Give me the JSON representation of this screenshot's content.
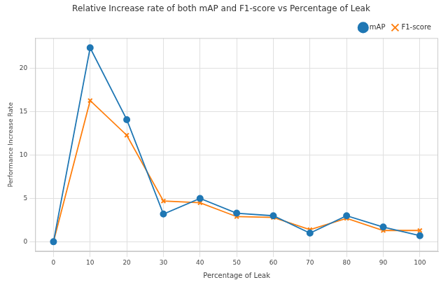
{
  "chart_data": {
    "type": "line",
    "title": "Relative Increase rate of both mAP and F1-score vs Percentage of Leak",
    "x_label": "Percentage of Leak",
    "y_label": "Performance Increase Rate",
    "x": [
      0,
      10,
      20,
      30,
      40,
      50,
      60,
      70,
      80,
      90,
      100
    ],
    "series": [
      {
        "name": "mAP",
        "color": "#1f77b4",
        "marker": "circle",
        "line_style": "solid",
        "values": [
          0,
          22.4,
          14.1,
          3.2,
          5.0,
          3.3,
          3.0,
          1.0,
          3.0,
          1.7,
          0.7
        ]
      },
      {
        "name": "F1-score",
        "color": "#ff7f0e",
        "marker": "x",
        "line_style": "solid",
        "values": [
          0,
          16.3,
          12.3,
          4.7,
          4.5,
          2.9,
          2.8,
          1.4,
          2.7,
          1.3,
          1.3
        ]
      }
    ],
    "xlim": [
      -5,
      105
    ],
    "xticks": [
      0,
      10,
      20,
      30,
      40,
      50,
      60,
      70,
      80,
      90,
      100
    ],
    "ylim": [
      -1.12,
      23.52
    ],
    "yticks": [
      0,
      5,
      10,
      15,
      20
    ],
    "grid": true,
    "legend": "upper right"
  }
}
